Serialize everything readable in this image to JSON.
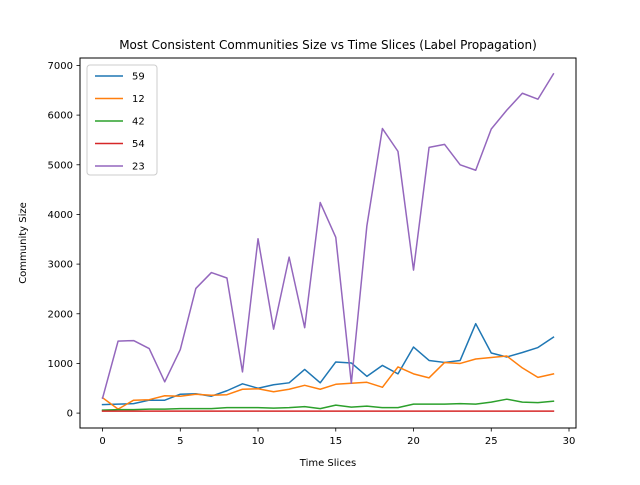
{
  "chart_data": {
    "type": "line",
    "title": "Most Consistent Communities Size vs Time Slices (Label Propagation)",
    "xlabel": "Time Slices",
    "ylabel": "Community Size",
    "xlim": [
      -1.45,
      30.45
    ],
    "ylim": [
      -300,
      7150
    ],
    "xticks": [
      0,
      5,
      10,
      15,
      20,
      25,
      30
    ],
    "yticks": [
      0,
      1000,
      2000,
      3000,
      4000,
      5000,
      6000,
      7000
    ],
    "grid": false,
    "legend_position": "upper-left",
    "x": [
      0,
      1,
      2,
      3,
      4,
      5,
      6,
      7,
      8,
      9,
      10,
      11,
      12,
      13,
      14,
      15,
      16,
      17,
      18,
      19,
      20,
      21,
      22,
      23,
      24,
      25,
      26,
      27,
      28,
      29
    ],
    "series": [
      {
        "name": "59",
        "color": "#1f77b4",
        "values": [
          170,
          180,
          190,
          260,
          260,
          380,
          390,
          340,
          450,
          590,
          500,
          570,
          610,
          880,
          610,
          1030,
          1010,
          740,
          960,
          790,
          1330,
          1060,
          1020,
          1060,
          1800,
          1210,
          1130,
          1220,
          1320,
          1530
        ]
      },
      {
        "name": "12",
        "color": "#ff7f0e",
        "values": [
          310,
          80,
          260,
          270,
          350,
          340,
          380,
          360,
          370,
          480,
          490,
          430,
          480,
          560,
          480,
          580,
          600,
          620,
          520,
          930,
          790,
          710,
          1020,
          1000,
          1090,
          1120,
          1150,
          910,
          720,
          790
        ]
      },
      {
        "name": "42",
        "color": "#2ca02c",
        "values": [
          60,
          70,
          70,
          80,
          80,
          90,
          90,
          90,
          110,
          110,
          110,
          100,
          110,
          130,
          90,
          160,
          120,
          140,
          110,
          110,
          180,
          180,
          180,
          190,
          180,
          220,
          280,
          220,
          210,
          240
        ]
      },
      {
        "name": "54",
        "color": "#d62728",
        "values": [
          40,
          40,
          40,
          40,
          40,
          40,
          40,
          40,
          40,
          40,
          40,
          40,
          40,
          40,
          40,
          40,
          40,
          40,
          40,
          40,
          40,
          40,
          40,
          40,
          40,
          40,
          40,
          40,
          40,
          40
        ]
      },
      {
        "name": "23",
        "color": "#9467bd",
        "values": [
          300,
          1450,
          1460,
          1300,
          630,
          1280,
          2510,
          2830,
          2720,
          830,
          3510,
          1690,
          3140,
          1720,
          4240,
          3540,
          600,
          3770,
          5730,
          5270,
          2880,
          5350,
          5410,
          5000,
          4890,
          5720,
          6100,
          6440,
          6320,
          6830
        ]
      }
    ]
  }
}
